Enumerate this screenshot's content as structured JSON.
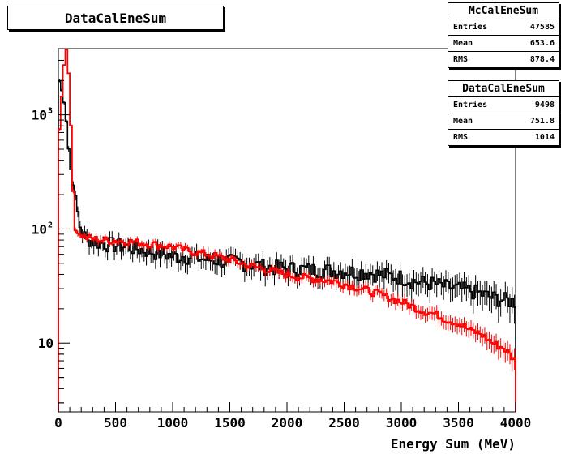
{
  "chart_data": {
    "type": "line",
    "title": "DataCalEneSum",
    "xlabel": "Energy Sum (MeV)",
    "ylabel": "",
    "xlim": [
      0,
      4000
    ],
    "ylim": [
      2.5,
      3800
    ],
    "yscale": "log",
    "grid": false,
    "x_ticks": [
      "0",
      "500",
      "1000",
      "1500",
      "2000",
      "2500",
      "3000",
      "3500",
      "4000"
    ],
    "y_ticks": [
      {
        "value": 10,
        "label": "10"
      },
      {
        "value": 100,
        "label": "10",
        "exp": "2"
      },
      {
        "value": 1000,
        "label": "10",
        "exp": "3"
      }
    ],
    "bin_width": 20,
    "series": [
      {
        "name": "DataCalEneSum",
        "color": "#000000",
        "style": "step-errorbars",
        "x": [
          0,
          60,
          100,
          140,
          200,
          300,
          400,
          500,
          600,
          700,
          800,
          900,
          1000,
          1100,
          1200,
          1300,
          1400,
          1500,
          1600,
          1700,
          1800,
          1900,
          2000,
          2100,
          2200,
          2300,
          2400,
          2500,
          2600,
          2700,
          2800,
          2900,
          3000,
          3100,
          3200,
          3300,
          3400,
          3500,
          3600,
          3700,
          3800,
          3900,
          4000
        ],
        "y": [
          2200,
          1200,
          380,
          220,
          90,
          78,
          75,
          72,
          70,
          67,
          64,
          61,
          58,
          58,
          56,
          54,
          53,
          52,
          51,
          49,
          47,
          46,
          45,
          45,
          44,
          44,
          43,
          43,
          42,
          42,
          40,
          39,
          38,
          35,
          34,
          33,
          31,
          30,
          29,
          27,
          25,
          24,
          23
        ]
      },
      {
        "name": "McCalEneSum",
        "color": "#ff0000",
        "style": "step",
        "x": [
          0,
          60,
          80,
          120,
          140,
          200,
          300,
          400,
          500,
          600,
          700,
          800,
          900,
          1000,
          1100,
          1200,
          1300,
          1400,
          1500,
          1600,
          1700,
          1800,
          1900,
          2000,
          2100,
          2200,
          2300,
          2400,
          2500,
          2600,
          2700,
          2800,
          2900,
          3000,
          3100,
          3200,
          3300,
          3400,
          3500,
          3600,
          3700,
          3800,
          3900,
          4000
        ],
        "y": [
          550,
          3800,
          3800,
          480,
          100,
          86,
          82,
          80,
          79,
          78,
          76,
          74,
          72,
          70,
          66,
          63,
          60,
          57,
          54,
          50,
          47,
          45,
          42,
          40,
          38,
          37,
          36,
          35,
          33,
          31,
          29,
          27,
          25,
          23,
          21,
          19,
          18,
          16,
          15,
          13,
          12,
          10,
          9,
          7
        ]
      }
    ]
  },
  "stats": [
    {
      "name": "McCalEneSum",
      "entries": "47585",
      "mean": "653.6",
      "rms": "878.4"
    },
    {
      "name": "DataCalEneSum",
      "entries": "9498",
      "mean": "751.8",
      "rms": "1014"
    }
  ],
  "stat_labels": {
    "entries": "Entries",
    "mean": "Mean",
    "rms": "RMS"
  }
}
